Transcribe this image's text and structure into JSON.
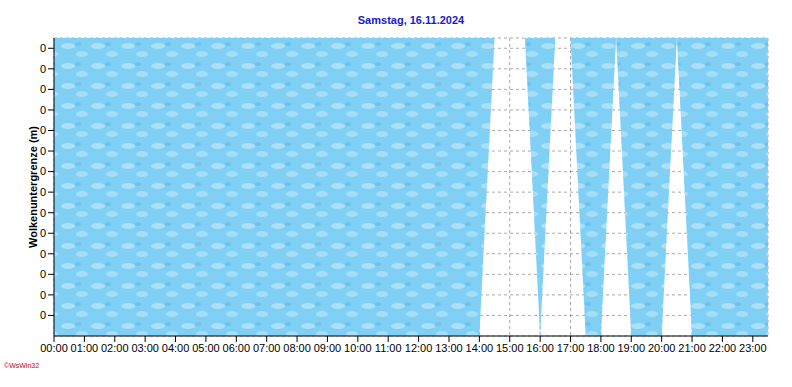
{
  "chart_data": {
    "type": "area",
    "title": "Samstag, 16.11.2024",
    "y_label": "Wolkenuntergrenze (m)",
    "credit": "©WsWin32",
    "x": [
      0,
      0.5,
      1,
      1.5,
      2,
      2.5,
      3,
      3.5,
      4,
      4.5,
      5,
      5.5,
      6,
      6.5,
      7,
      7.5,
      8,
      8.5,
      9,
      9.5,
      10,
      10.5,
      11,
      11.5,
      12,
      12.5,
      13,
      13.5,
      14,
      14.5,
      15,
      15.5,
      16,
      16.5,
      17,
      17.5,
      18,
      18.5,
      19,
      19.5,
      20,
      20.5,
      21,
      21.5,
      22,
      22.5,
      23,
      23.5
    ],
    "values": [
      0,
      0,
      0,
      0,
      0,
      0,
      0,
      0,
      0,
      0,
      0,
      0,
      0,
      0,
      0,
      0,
      0,
      0,
      0,
      0,
      0,
      0,
      0,
      0,
      0,
      0,
      0,
      0,
      0,
      0.29,
      0.29,
      0.29,
      0,
      0.29,
      0.29,
      0,
      0,
      0.29,
      0,
      0,
      0,
      0.29,
      0,
      0,
      0,
      0,
      0,
      0
    ],
    "color": "#7fd0f4",
    "xlim": [
      0,
      23.5
    ],
    "xticks": [
      {
        "value": 0,
        "label": "00:00"
      },
      {
        "value": 1,
        "label": "01:00"
      },
      {
        "value": 2,
        "label": "02:00"
      },
      {
        "value": 3,
        "label": "03:00"
      },
      {
        "value": 4,
        "label": "04:00"
      },
      {
        "value": 5,
        "label": "05:00"
      },
      {
        "value": 6,
        "label": "06:00"
      },
      {
        "value": 7,
        "label": "07:00"
      },
      {
        "value": 8,
        "label": "08:00"
      },
      {
        "value": 9,
        "label": "09:00"
      },
      {
        "value": 10,
        "label": "10:00"
      },
      {
        "value": 11,
        "label": "11:00"
      },
      {
        "value": 12,
        "label": "12:00"
      },
      {
        "value": 13,
        "label": "13:00"
      },
      {
        "value": 14,
        "label": "14:00"
      },
      {
        "value": 15,
        "label": "15:00"
      },
      {
        "value": 16,
        "label": "16:00"
      },
      {
        "value": 17,
        "label": "17:00"
      },
      {
        "value": 18,
        "label": "18:00"
      },
      {
        "value": 19,
        "label": "19:00"
      },
      {
        "value": 20,
        "label": "20:00"
      },
      {
        "value": 21,
        "label": "21:00"
      },
      {
        "value": 22,
        "label": "22:00"
      },
      {
        "value": 23,
        "label": "23:00"
      }
    ],
    "ylim": [
      0,
      0.29
    ],
    "yticks": [
      {
        "value": 0.02,
        "label": "0"
      },
      {
        "value": 0.04,
        "label": "0"
      },
      {
        "value": 0.06,
        "label": "0"
      },
      {
        "value": 0.08,
        "label": "0"
      },
      {
        "value": 0.1,
        "label": "0"
      },
      {
        "value": 0.12,
        "label": "0"
      },
      {
        "value": 0.14,
        "label": "0"
      },
      {
        "value": 0.16,
        "label": "0"
      },
      {
        "value": 0.18,
        "label": "0"
      },
      {
        "value": 0.2,
        "label": "0"
      },
      {
        "value": 0.22,
        "label": "0"
      },
      {
        "value": 0.24,
        "label": "0"
      },
      {
        "value": 0.26,
        "label": "0"
      },
      {
        "value": 0.28,
        "label": "0"
      }
    ],
    "grid": true
  }
}
